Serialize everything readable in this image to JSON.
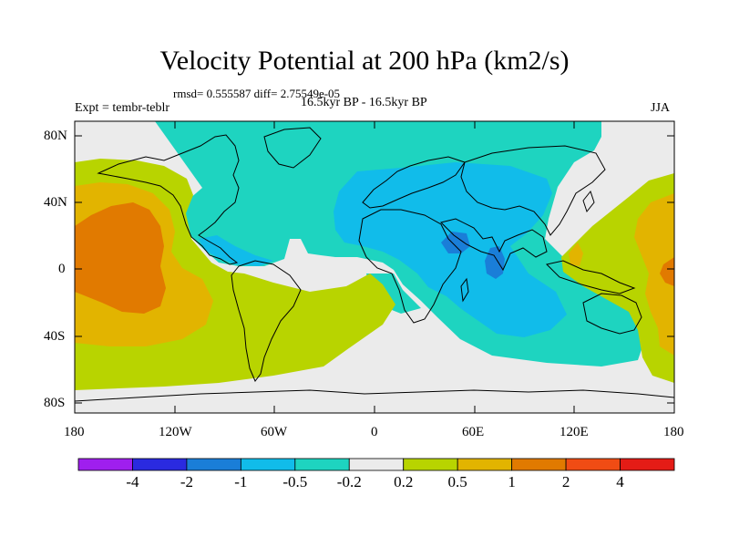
{
  "title": "Velocity Potential at 200 hPa (km2/s)",
  "stats": "rmsd= 0.555587 diff= 2.75549e-05",
  "left_label": "Expt = tembr-teblr",
  "center_label": "16.5kyr BP - 16.5kyr BP",
  "right_label": "JJA",
  "lat_ticks": [
    "80N",
    "40N",
    "0",
    "40S",
    "80S"
  ],
  "lon_ticks": [
    "180",
    "120W",
    "60W",
    "0",
    "60E",
    "120E",
    "180"
  ],
  "colorbar": {
    "labels": [
      "-4",
      "-2",
      "-1",
      "-0.5",
      "-0.2",
      "0.2",
      "0.5",
      "1",
      "2",
      "4"
    ],
    "colors": [
      "#9f1fee",
      "#2a2ae0",
      "#1a7ed8",
      "#11bcea",
      "#1ed4c0",
      "#ebebeb",
      "#b8d400",
      "#e2b400",
      "#e17a00",
      "#f04c14",
      "#e41c16"
    ]
  },
  "palette": {
    "ocean_base": "#ebebeb",
    "teal": "#1ed4c0",
    "light_blue": "#11bcea",
    "blue": "#1a7ed8",
    "lime": "#b8d400",
    "gold": "#e2b400",
    "orange": "#e17a00"
  }
}
